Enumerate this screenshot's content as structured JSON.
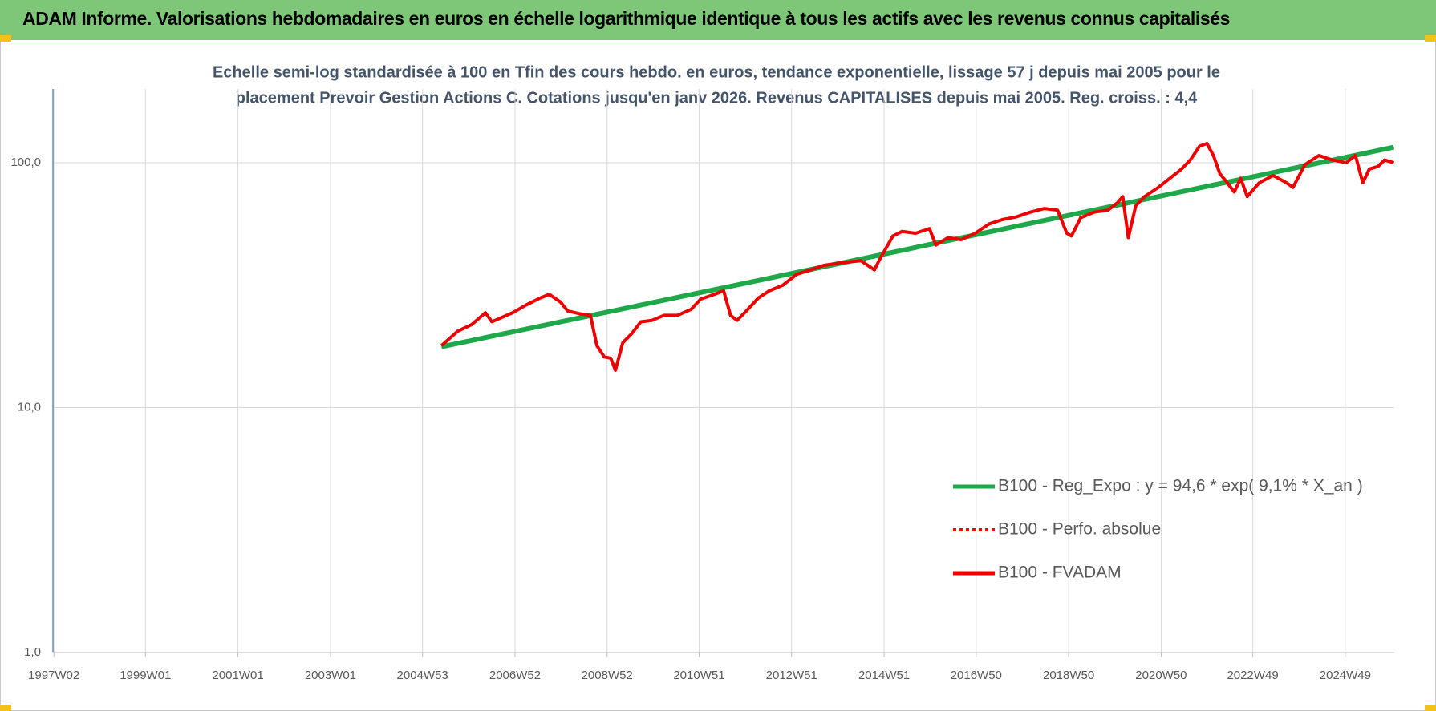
{
  "chart_data": {
    "type": "line",
    "title": "ADAM Informe. Valorisations hebdomadaires en euros en échelle logarithmique identique à tous les actifs avec les revenus connus capitalisés",
    "subtitle": [
      "Echelle semi-log standardisée à 100 en Tfin des cours hebdo. en euros, tendance exponentielle, lissage 57 j depuis mai 2005 pour le",
      "placement Prevoir Gestion Actions C. Cotations jusqu'en janv 2026. Revenus CAPITALISES depuis mai 2005. Reg. croiss. : 4,4"
    ],
    "log_scale": true,
    "grid": true,
    "legend": "right",
    "xlim": [
      1997,
      2026
    ],
    "ylim": [
      1,
      200
    ],
    "yticks": [
      {
        "value": 1,
        "label": "1,0"
      },
      {
        "value": 10,
        "label": "10,0"
      },
      {
        "value": 100,
        "label": "100,0"
      }
    ],
    "xticks": [
      {
        "value": 1997.02,
        "label": "1997W02"
      },
      {
        "value": 1999.0,
        "label": "1999W01"
      },
      {
        "value": 2001.0,
        "label": "2001W01"
      },
      {
        "value": 2003.0,
        "label": "2003W01"
      },
      {
        "value": 2004.99,
        "label": "2004W53"
      },
      {
        "value": 2006.99,
        "label": "2006W52"
      },
      {
        "value": 2008.98,
        "label": "2008W52"
      },
      {
        "value": 2010.97,
        "label": "2010W51"
      },
      {
        "value": 2012.97,
        "label": "2012W51"
      },
      {
        "value": 2014.97,
        "label": "2014W51"
      },
      {
        "value": 2016.96,
        "label": "2016W50"
      },
      {
        "value": 2018.96,
        "label": "2018W50"
      },
      {
        "value": 2020.96,
        "label": "2020W50"
      },
      {
        "value": 2022.94,
        "label": "2022W49"
      },
      {
        "value": 2024.94,
        "label": "2024W49"
      }
    ],
    "x": [
      2005.4,
      2005.75,
      2006.05,
      2006.35,
      2006.49,
      2006.94,
      2007.24,
      2007.53,
      2007.73,
      2007.97,
      2008.13,
      2008.37,
      2008.62,
      2008.76,
      2008.92,
      2009.06,
      2009.16,
      2009.32,
      2009.51,
      2009.71,
      2009.95,
      2010.21,
      2010.5,
      2010.8,
      2011.0,
      2011.3,
      2011.5,
      2011.65,
      2011.79,
      2011.99,
      2012.25,
      2012.49,
      2012.78,
      2013.08,
      2013.38,
      2013.67,
      2014.07,
      2014.47,
      2014.76,
      2014.86,
      2015.16,
      2015.36,
      2015.65,
      2015.95,
      2016.09,
      2016.35,
      2016.64,
      2016.94,
      2017.24,
      2017.53,
      2017.83,
      2018.13,
      2018.43,
      2018.72,
      2018.92,
      2019.02,
      2019.22,
      2019.51,
      2019.81,
      2020.01,
      2020.13,
      2020.25,
      2020.41,
      2020.6,
      2020.9,
      2021.2,
      2021.4,
      2021.59,
      2021.79,
      2021.95,
      2022.09,
      2022.23,
      2022.39,
      2022.54,
      2022.68,
      2022.82,
      2023.08,
      2023.38,
      2023.67,
      2023.81,
      2024.07,
      2024.37,
      2024.66,
      2024.96,
      2025.16,
      2025.32,
      2025.46,
      2025.65,
      2025.79,
      2025.99
    ],
    "series": [
      {
        "name": "B100 - Reg_Expo : y = 94,6 * exp( 9,1% *  X_an )",
        "color": "#1fa84a",
        "style": "solid",
        "width": 6,
        "x": [
          2005.4,
          2025.99
        ],
        "values": [
          17.7,
          115.7
        ]
      },
      {
        "name": "B100 - Perfo. absolue",
        "color": "#ff0000",
        "style": "dotted",
        "width": 3,
        "values": [
          17.9,
          20.5,
          21.8,
          24.4,
          22.4,
          24.4,
          26.3,
          28.0,
          29.0,
          27.0,
          24.8,
          24.2,
          23.8,
          17.9,
          16.1,
          15.9,
          14.2,
          18.4,
          20.0,
          22.4,
          22.7,
          23.8,
          23.8,
          25.2,
          27.7,
          29.0,
          30.0,
          23.8,
          22.7,
          24.8,
          28.0,
          30.0,
          31.6,
          35.0,
          36.5,
          38.1,
          39.1,
          39.8,
          36.5,
          39.8,
          50.2,
          52.4,
          51.5,
          53.8,
          46.1,
          49.4,
          48.5,
          51.5,
          56.2,
          58.6,
          60.1,
          62.8,
          65.0,
          64.0,
          51.5,
          50.2,
          59.6,
          62.8,
          64.0,
          68.5,
          72.7,
          49.4,
          66.7,
          72.7,
          79.3,
          87.9,
          94.2,
          102.6,
          116.8,
          119.8,
          107.0,
          90.2,
          82.8,
          75.9,
          86.4,
          72.7,
          82.8,
          88.7,
          82.8,
          79.3,
          98.3,
          107.0,
          102.6,
          100.0,
          107.0,
          82.8,
          94.2,
          96.6,
          102.6,
          100.0
        ]
      },
      {
        "name": "B100 - FVADAM",
        "color": "#ee0000",
        "style": "solid",
        "width": 4,
        "values": [
          17.9,
          20.5,
          21.8,
          24.4,
          22.4,
          24.4,
          26.3,
          28.0,
          29.0,
          27.0,
          24.8,
          24.2,
          23.8,
          17.9,
          16.1,
          15.9,
          14.2,
          18.4,
          20.0,
          22.4,
          22.7,
          23.8,
          23.8,
          25.2,
          27.7,
          29.0,
          30.0,
          23.8,
          22.7,
          24.8,
          28.0,
          30.0,
          31.6,
          35.0,
          36.5,
          38.1,
          39.1,
          39.8,
          36.5,
          39.8,
          50.2,
          52.4,
          51.5,
          53.8,
          46.1,
          49.4,
          48.5,
          51.5,
          56.2,
          58.6,
          60.1,
          62.8,
          65.0,
          64.0,
          51.5,
          50.2,
          59.6,
          62.8,
          64.0,
          68.5,
          72.7,
          49.4,
          66.7,
          72.7,
          79.3,
          87.9,
          94.2,
          102.6,
          116.8,
          119.8,
          107.0,
          90.2,
          82.8,
          75.9,
          86.4,
          72.7,
          82.8,
          88.7,
          82.8,
          79.3,
          98.3,
          107.0,
          102.6,
          100.0,
          107.0,
          82.8,
          94.2,
          96.6,
          102.6,
          100.0
        ]
      }
    ]
  }
}
